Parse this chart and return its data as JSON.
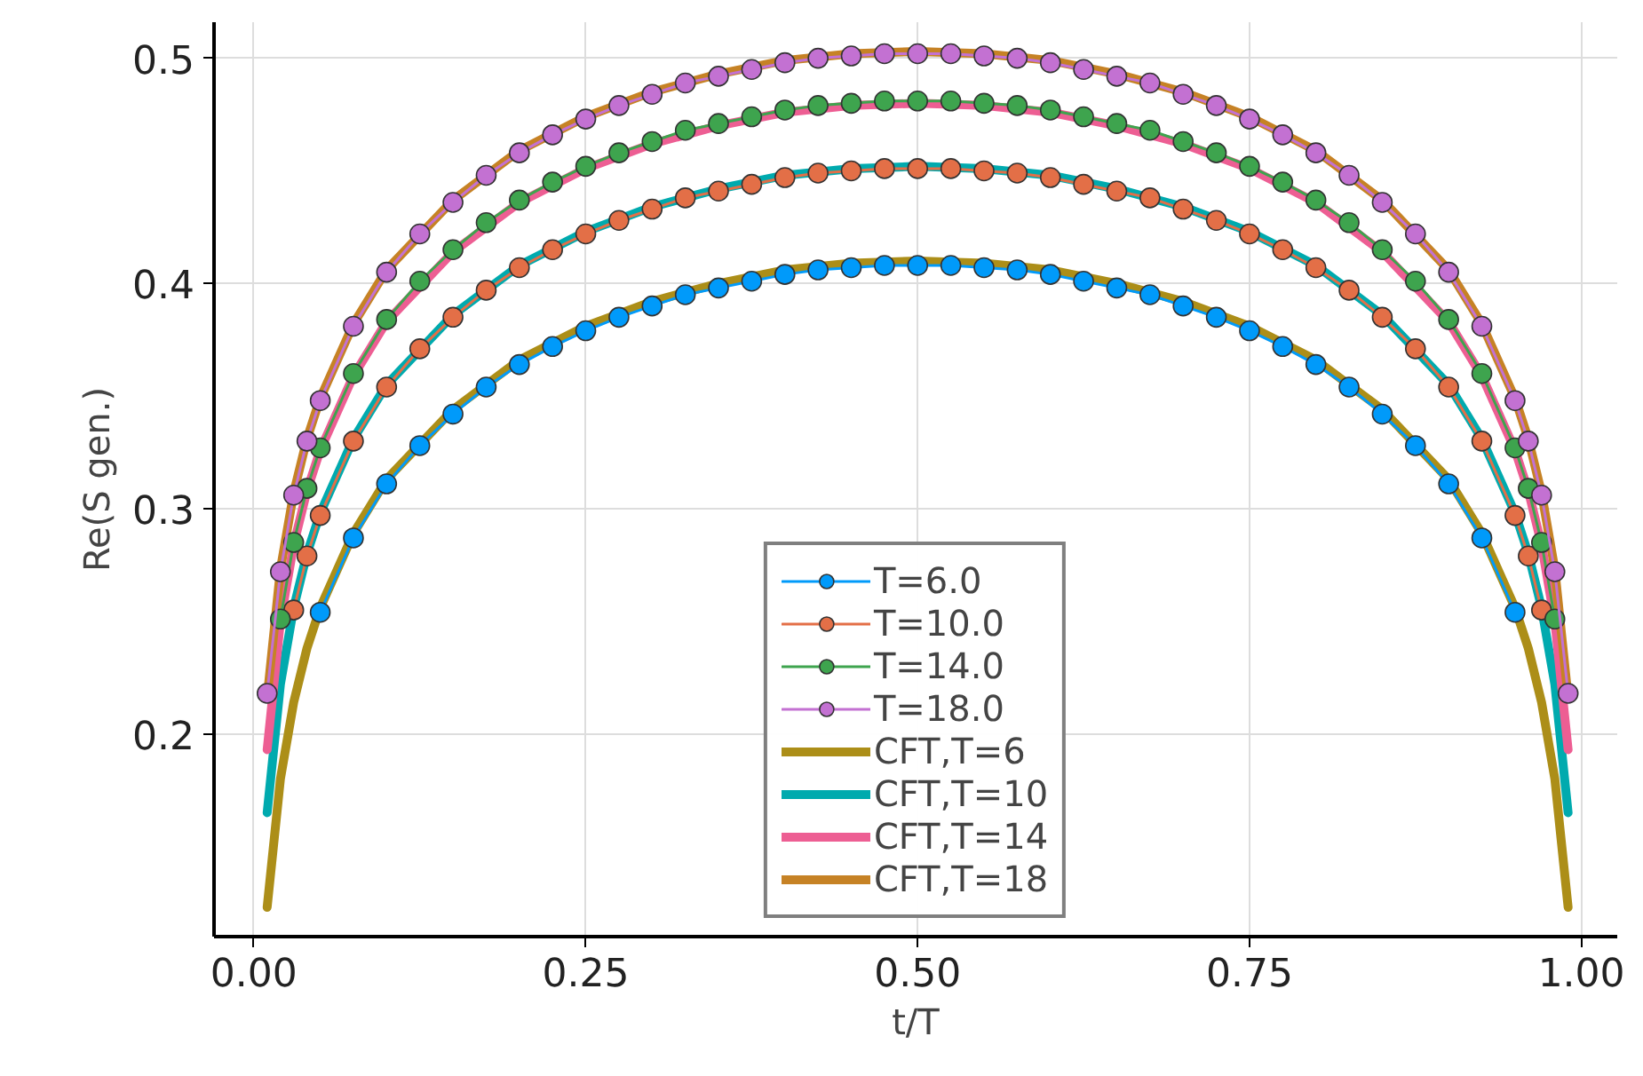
{
  "chart_data": {
    "type": "line",
    "xlabel": "t/T",
    "ylabel": "Re(S gen.)",
    "xlim": [
      -0.03,
      1.027
    ],
    "ylim": [
      0.11,
      0.516
    ],
    "xticks": [
      {
        "value": 0,
        "label": "0.00"
      },
      {
        "value": 0.25,
        "label": "0.25"
      },
      {
        "value": 0.5,
        "label": "0.50"
      },
      {
        "value": 0.75,
        "label": "0.75"
      },
      {
        "value": 1,
        "label": "1.00"
      }
    ],
    "yticks": [
      0.2,
      0.3,
      0.4,
      0.5
    ],
    "grid": true,
    "legend": "bottom",
    "series": [
      {
        "name": "T=6.0",
        "color": "#009afa",
        "marker": "circle",
        "line_style": "solid",
        "x": [
          0.05,
          0.075,
          0.1,
          0.125,
          0.15,
          0.175,
          0.2,
          0.225,
          0.25,
          0.275,
          0.3,
          0.325,
          0.35,
          0.375,
          0.4,
          0.425,
          0.45,
          0.475,
          0.5,
          0.525,
          0.55,
          0.575,
          0.6,
          0.625,
          0.65,
          0.675,
          0.7,
          0.725,
          0.75,
          0.775,
          0.8,
          0.825,
          0.85,
          0.875,
          0.9,
          0.925,
          0.95
        ],
        "values": [
          0.254,
          0.287,
          0.311,
          0.328,
          0.342,
          0.354,
          0.364,
          0.372,
          0.379,
          0.385,
          0.39,
          0.395,
          0.398,
          0.401,
          0.404,
          0.406,
          0.407,
          0.408,
          0.408,
          0.408,
          0.407,
          0.406,
          0.404,
          0.401,
          0.398,
          0.395,
          0.39,
          0.385,
          0.379,
          0.372,
          0.364,
          0.354,
          0.342,
          0.328,
          0.311,
          0.287,
          0.254
        ]
      },
      {
        "name": "T=10.0",
        "color": "#e36f47",
        "marker": "circle",
        "line_style": "solid",
        "x": [
          0.03,
          0.04,
          0.05,
          0.075,
          0.1,
          0.125,
          0.15,
          0.175,
          0.2,
          0.225,
          0.25,
          0.275,
          0.3,
          0.325,
          0.35,
          0.375,
          0.4,
          0.425,
          0.45,
          0.475,
          0.5,
          0.525,
          0.55,
          0.575,
          0.6,
          0.625,
          0.65,
          0.675,
          0.7,
          0.725,
          0.75,
          0.775,
          0.8,
          0.825,
          0.85,
          0.875,
          0.9,
          0.925,
          0.95,
          0.96,
          0.97
        ],
        "values": [
          0.255,
          0.279,
          0.297,
          0.33,
          0.354,
          0.371,
          0.385,
          0.397,
          0.407,
          0.415,
          0.422,
          0.428,
          0.433,
          0.438,
          0.441,
          0.444,
          0.447,
          0.449,
          0.45,
          0.451,
          0.451,
          0.451,
          0.45,
          0.449,
          0.447,
          0.444,
          0.441,
          0.438,
          0.433,
          0.428,
          0.422,
          0.415,
          0.407,
          0.397,
          0.385,
          0.371,
          0.354,
          0.33,
          0.297,
          0.279,
          0.255
        ]
      },
      {
        "name": "T=14.0",
        "color": "#3ea44e",
        "marker": "circle",
        "line_style": "solid",
        "x": [
          0.02,
          0.03,
          0.04,
          0.05,
          0.075,
          0.1,
          0.125,
          0.15,
          0.175,
          0.2,
          0.225,
          0.25,
          0.275,
          0.3,
          0.325,
          0.35,
          0.375,
          0.4,
          0.425,
          0.45,
          0.475,
          0.5,
          0.525,
          0.55,
          0.575,
          0.6,
          0.625,
          0.65,
          0.675,
          0.7,
          0.725,
          0.75,
          0.775,
          0.8,
          0.825,
          0.85,
          0.875,
          0.9,
          0.925,
          0.95,
          0.96,
          0.97,
          0.98
        ],
        "values": [
          0.251,
          0.285,
          0.309,
          0.327,
          0.36,
          0.384,
          0.401,
          0.415,
          0.427,
          0.437,
          0.445,
          0.452,
          0.458,
          0.463,
          0.468,
          0.471,
          0.474,
          0.477,
          0.479,
          0.48,
          0.481,
          0.481,
          0.481,
          0.48,
          0.479,
          0.477,
          0.474,
          0.471,
          0.468,
          0.463,
          0.458,
          0.452,
          0.445,
          0.437,
          0.427,
          0.415,
          0.401,
          0.384,
          0.36,
          0.327,
          0.309,
          0.285,
          0.251
        ]
      },
      {
        "name": "T=18.0",
        "color": "#c371d2",
        "marker": "circle",
        "line_style": "solid",
        "x": [
          0.01,
          0.02,
          0.03,
          0.04,
          0.05,
          0.075,
          0.1,
          0.125,
          0.15,
          0.175,
          0.2,
          0.225,
          0.25,
          0.275,
          0.3,
          0.325,
          0.35,
          0.375,
          0.4,
          0.425,
          0.45,
          0.475,
          0.5,
          0.525,
          0.55,
          0.575,
          0.6,
          0.625,
          0.65,
          0.675,
          0.7,
          0.725,
          0.75,
          0.775,
          0.8,
          0.825,
          0.85,
          0.875,
          0.9,
          0.925,
          0.95,
          0.96,
          0.97,
          0.98,
          0.99
        ],
        "values": [
          0.218,
          0.272,
          0.306,
          0.33,
          0.348,
          0.381,
          0.405,
          0.422,
          0.436,
          0.448,
          0.458,
          0.466,
          0.473,
          0.479,
          0.484,
          0.489,
          0.492,
          0.495,
          0.498,
          0.5,
          0.501,
          0.502,
          0.502,
          0.502,
          0.501,
          0.5,
          0.498,
          0.495,
          0.492,
          0.489,
          0.484,
          0.479,
          0.473,
          0.466,
          0.458,
          0.448,
          0.436,
          0.422,
          0.405,
          0.381,
          0.348,
          0.33,
          0.306,
          0.272,
          0.218
        ]
      },
      {
        "name": "CFT,T=6",
        "color": "#ac8e18",
        "line_style": "solid",
        "x": [
          0.01,
          0.02,
          0.03,
          0.04,
          0.05,
          0.075,
          0.1,
          0.15,
          0.2,
          0.25,
          0.3,
          0.35,
          0.4,
          0.45,
          0.5,
          0.55,
          0.6,
          0.65,
          0.7,
          0.75,
          0.8,
          0.85,
          0.9,
          0.925,
          0.95,
          0.96,
          0.97,
          0.98,
          0.99
        ],
        "values": [
          0.123,
          0.18,
          0.214,
          0.238,
          0.256,
          0.289,
          0.313,
          0.344,
          0.366,
          0.381,
          0.392,
          0.4,
          0.406,
          0.409,
          0.41,
          0.409,
          0.406,
          0.4,
          0.392,
          0.381,
          0.366,
          0.344,
          0.313,
          0.289,
          0.256,
          0.238,
          0.214,
          0.18,
          0.123
        ]
      },
      {
        "name": "CFT,T=10",
        "color": "#00aaae",
        "line_style": "solid",
        "x": [
          0.01,
          0.02,
          0.03,
          0.04,
          0.05,
          0.075,
          0.1,
          0.15,
          0.2,
          0.25,
          0.3,
          0.35,
          0.4,
          0.45,
          0.5,
          0.55,
          0.6,
          0.65,
          0.7,
          0.75,
          0.8,
          0.85,
          0.9,
          0.925,
          0.95,
          0.96,
          0.97,
          0.98,
          0.99
        ],
        "values": [
          0.165,
          0.222,
          0.256,
          0.28,
          0.298,
          0.331,
          0.355,
          0.386,
          0.408,
          0.423,
          0.434,
          0.442,
          0.448,
          0.451,
          0.452,
          0.451,
          0.448,
          0.442,
          0.434,
          0.423,
          0.408,
          0.386,
          0.355,
          0.331,
          0.298,
          0.28,
          0.256,
          0.222,
          0.165
        ]
      },
      {
        "name": "CFT,T=14",
        "color": "#ed5e93",
        "line_style": "solid",
        "x": [
          0.01,
          0.02,
          0.03,
          0.04,
          0.05,
          0.075,
          0.1,
          0.15,
          0.2,
          0.25,
          0.3,
          0.35,
          0.4,
          0.45,
          0.5,
          0.55,
          0.6,
          0.65,
          0.7,
          0.75,
          0.8,
          0.85,
          0.9,
          0.925,
          0.95,
          0.96,
          0.97,
          0.98,
          0.99
        ],
        "values": [
          0.193,
          0.25,
          0.284,
          0.308,
          0.326,
          0.359,
          0.383,
          0.414,
          0.436,
          0.451,
          0.462,
          0.47,
          0.476,
          0.479,
          0.48,
          0.479,
          0.476,
          0.47,
          0.462,
          0.451,
          0.436,
          0.414,
          0.383,
          0.359,
          0.326,
          0.308,
          0.284,
          0.25,
          0.193
        ]
      },
      {
        "name": "CFT,T=18",
        "color": "#c68225",
        "line_style": "solid",
        "x": [
          0.01,
          0.02,
          0.03,
          0.04,
          0.05,
          0.075,
          0.1,
          0.15,
          0.2,
          0.25,
          0.3,
          0.35,
          0.4,
          0.45,
          0.5,
          0.55,
          0.6,
          0.65,
          0.7,
          0.75,
          0.8,
          0.85,
          0.9,
          0.925,
          0.95,
          0.96,
          0.97,
          0.98,
          0.99
        ],
        "values": [
          0.216,
          0.273,
          0.307,
          0.331,
          0.349,
          0.382,
          0.406,
          0.437,
          0.459,
          0.474,
          0.485,
          0.493,
          0.499,
          0.502,
          0.503,
          0.502,
          0.499,
          0.493,
          0.485,
          0.474,
          0.459,
          0.437,
          0.406,
          0.382,
          0.349,
          0.331,
          0.307,
          0.273,
          0.216
        ]
      }
    ]
  }
}
